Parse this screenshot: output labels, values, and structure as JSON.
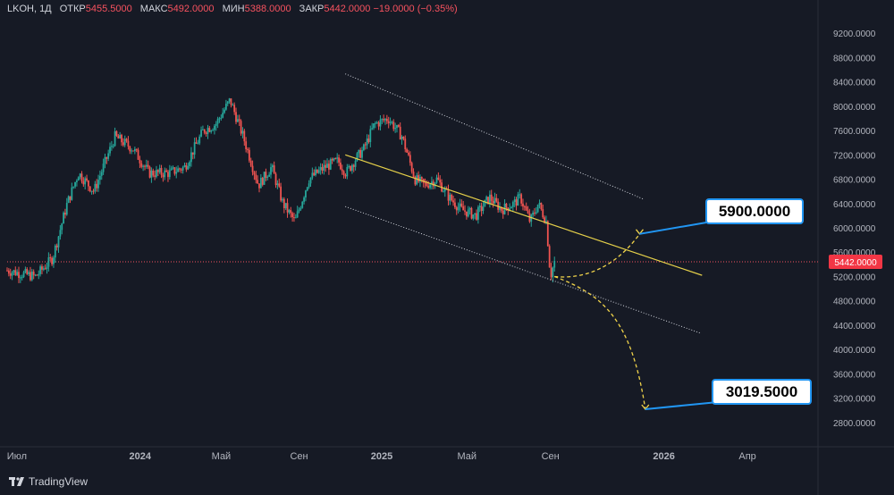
{
  "header": {
    "symbol": "LKOH, 1Д",
    "open_label": "ОТКР",
    "open": "5455.5000",
    "high_label": "МАКС",
    "high": "5492.0000",
    "low_label": "МИН",
    "low": "5388.0000",
    "close_label": "ЗАКР",
    "close": "5442.0000",
    "change": "−19.0000 (−0.35%)"
  },
  "brand": "TradingView",
  "colors": {
    "bg": "#161a25",
    "up": "#26a69a",
    "down": "#ef5350",
    "trend": "#e5d04a",
    "callout": "#2196f3"
  },
  "chart_data": {
    "type": "candlestick",
    "x_ticks": [
      "Июл",
      "2024",
      "Май",
      "Сен",
      "2025",
      "Май",
      "Сен",
      "2026",
      "Апр"
    ],
    "y_ticks": [
      "2800.0000",
      "3200.0000",
      "3600.0000",
      "4000.0000",
      "4400.0000",
      "4800.0000",
      "5200.0000",
      "5600.0000",
      "6000.0000",
      "6400.0000",
      "6800.0000",
      "7200.0000",
      "7600.0000",
      "8000.0000",
      "8400.0000",
      "8800.0000",
      "9200.0000"
    ],
    "ylim": [
      2550,
      9450
    ],
    "last_price": "5442.0000",
    "price_series_t": [
      0,
      0.035,
      0.056,
      0.074,
      0.088,
      0.107,
      0.133,
      0.155,
      0.175,
      0.2,
      0.219,
      0.242,
      0.257,
      0.275,
      0.291,
      0.31,
      0.326,
      0.34,
      0.355,
      0.372,
      0.392,
      0.408,
      0.418,
      0.428,
      0.44,
      0.453,
      0.47,
      0.487,
      0.503,
      0.515,
      0.53,
      0.545,
      0.56,
      0.578,
      0.595,
      0.61,
      0.625,
      0.633,
      0.645,
      0.655,
      0.665,
      0.67,
      0.675
    ],
    "price_series_v": [
      5300,
      5200,
      5500,
      6400,
      6900,
      6600,
      7500,
      7300,
      6900,
      6900,
      7000,
      7600,
      7700,
      8100,
      7500,
      6700,
      7000,
      6400,
      6100,
      6800,
      7000,
      7100,
      6900,
      7100,
      7300,
      7700,
      7800,
      7500,
      6800,
      6700,
      6800,
      6500,
      6300,
      6200,
      6500,
      6300,
      6400,
      6500,
      6100,
      6400,
      6100,
      5200,
      5442
    ],
    "trend_line": {
      "t": [
        0.417,
        0.857
      ],
      "v": [
        7200,
        5220
      ]
    },
    "channel_upper": {
      "t": [
        0.417,
        0.785
      ],
      "v": [
        8530,
        6470
      ]
    },
    "channel_lower": {
      "t": [
        0.417,
        0.855
      ],
      "v": [
        6350,
        4270
      ]
    },
    "projections": [
      {
        "label": "5900.0000",
        "t": [
          0.675,
          0.712,
          0.75,
          0.78
        ],
        "v": [
          5200,
          5150,
          5350,
          5900
        ]
      },
      {
        "label": "3019.5000",
        "t": [
          0.675,
          0.735,
          0.77,
          0.787
        ],
        "v": [
          5200,
          4900,
          4500,
          3020
        ]
      }
    ]
  }
}
